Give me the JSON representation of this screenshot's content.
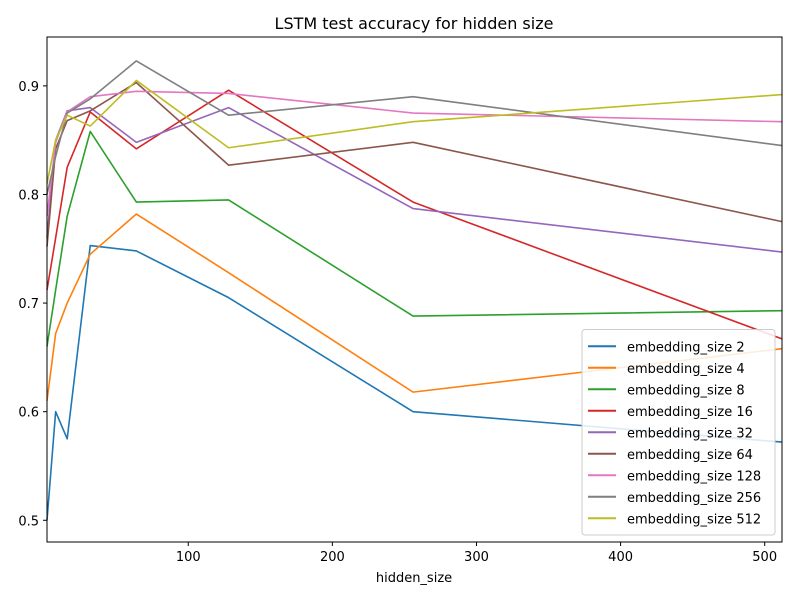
{
  "chart_data": {
    "type": "line",
    "title": "LSTM test accuracy for hidden size",
    "xlabel": "hidden_size",
    "ylabel": "",
    "xlim": [
      2,
      512
    ],
    "ylim": [
      0.48,
      0.945
    ],
    "xticks": [
      100,
      200,
      300,
      400,
      500
    ],
    "yticks": [
      0.5,
      0.6,
      0.7,
      0.8,
      0.9
    ],
    "x": [
      2,
      8,
      16,
      32,
      64,
      128,
      256,
      512
    ],
    "grid": false,
    "legend_position": "lower-right",
    "series": [
      {
        "name": "embedding_size 2",
        "color": "#1f77b4",
        "values": [
          0.5,
          0.6,
          0.575,
          0.753,
          0.748,
          0.705,
          0.6,
          0.572
        ]
      },
      {
        "name": "embedding_size 4",
        "color": "#ff7f0e",
        "values": [
          0.61,
          0.672,
          0.7,
          0.745,
          0.782,
          0.728,
          0.618,
          0.658
        ]
      },
      {
        "name": "embedding_size 8",
        "color": "#2ca02c",
        "values": [
          0.66,
          0.712,
          0.78,
          0.858,
          0.793,
          0.795,
          0.688,
          0.693
        ]
      },
      {
        "name": "embedding_size 16",
        "color": "#d62728",
        "values": [
          0.712,
          0.76,
          0.825,
          0.876,
          0.842,
          0.896,
          0.793,
          0.667
        ]
      },
      {
        "name": "embedding_size 32",
        "color": "#9467bd",
        "values": [
          0.76,
          0.85,
          0.877,
          0.88,
          0.848,
          0.88,
          0.787,
          0.747
        ]
      },
      {
        "name": "embedding_size 64",
        "color": "#8c564b",
        "values": [
          0.752,
          0.842,
          0.868,
          0.877,
          0.903,
          0.827,
          0.848,
          0.775
        ]
      },
      {
        "name": "embedding_size 128",
        "color": "#e377c2",
        "values": [
          0.78,
          0.848,
          0.876,
          0.89,
          0.895,
          0.893,
          0.875,
          0.867
        ]
      },
      {
        "name": "embedding_size 256",
        "color": "#7f7f7f",
        "values": [
          0.8,
          0.835,
          0.875,
          0.888,
          0.923,
          0.873,
          0.89,
          0.845
        ]
      },
      {
        "name": "embedding_size 512",
        "color": "#bcbd22",
        "values": [
          0.81,
          0.85,
          0.873,
          0.863,
          0.905,
          0.843,
          0.867,
          0.892
        ]
      }
    ]
  }
}
